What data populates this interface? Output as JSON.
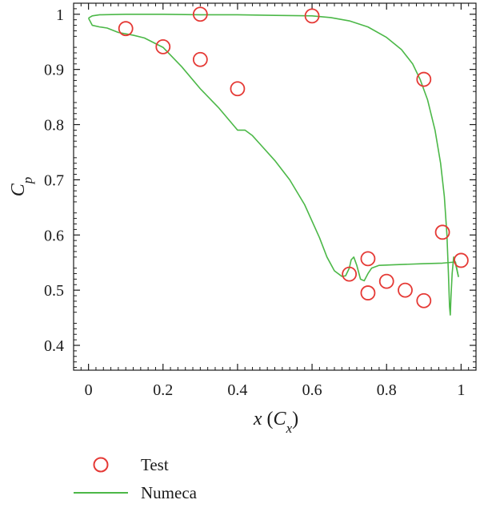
{
  "chart_data": {
    "type": "scatter",
    "xlabel_main": "x",
    "xlabel_paren_open": " (",
    "xlabel_sub_base": "C",
    "xlabel_sub": "x",
    "xlabel_paren_close": ")",
    "ylabel_base": "C",
    "ylabel_sub": "p",
    "xlim": [
      -0.04,
      1.04
    ],
    "ylim": [
      0.355,
      1.02
    ],
    "x_ticks": [
      0,
      0.2,
      0.4,
      0.6,
      0.8,
      1
    ],
    "x_tick_labels": [
      "0",
      "0.2",
      "0.4",
      "0.6",
      "0.8",
      "1"
    ],
    "y_ticks": [
      0.4,
      0.5,
      0.6,
      0.7,
      0.8,
      0.9,
      1
    ],
    "y_tick_labels": [
      "0.4",
      "0.5",
      "0.6",
      "0.7",
      "0.8",
      "0.9",
      "1"
    ],
    "grid": false,
    "legend_position": "bottom-left, below plot",
    "series": [
      {
        "name": "Test",
        "kind": "marker",
        "marker": "open-circle",
        "color": "#e53935",
        "points": [
          [
            0.1,
            0.974
          ],
          [
            0.2,
            0.941
          ],
          [
            0.3,
            0.918
          ],
          [
            0.4,
            0.865
          ],
          [
            0.3,
            1.0
          ],
          [
            0.6,
            0.997
          ],
          [
            0.7,
            0.529
          ],
          [
            0.75,
            0.557
          ],
          [
            0.75,
            0.495
          ],
          [
            0.8,
            0.516
          ],
          [
            0.85,
            0.5
          ],
          [
            0.9,
            0.882
          ],
          [
            0.9,
            0.481
          ],
          [
            0.95,
            0.605
          ],
          [
            1.0,
            0.554
          ]
        ]
      },
      {
        "name": "Numeca",
        "kind": "line",
        "color": "#4cb848",
        "segments": [
          [
            [
              0.0,
              0.993
            ],
            [
              0.01,
              0.997
            ],
            [
              0.03,
              0.999
            ],
            [
              0.1,
              1.0
            ],
            [
              0.2,
              1.0
            ],
            [
              0.3,
              0.999
            ],
            [
              0.4,
              0.999
            ],
            [
              0.5,
              0.998
            ],
            [
              0.6,
              0.997
            ],
            [
              0.65,
              0.994
            ],
            [
              0.7,
              0.988
            ],
            [
              0.75,
              0.977
            ],
            [
              0.8,
              0.958
            ],
            [
              0.84,
              0.936
            ],
            [
              0.87,
              0.91
            ],
            [
              0.89,
              0.882
            ],
            [
              0.91,
              0.845
            ],
            [
              0.93,
              0.79
            ],
            [
              0.945,
              0.73
            ],
            [
              0.955,
              0.67
            ],
            [
              0.962,
              0.6
            ],
            [
              0.966,
              0.53
            ],
            [
              0.969,
              0.47
            ],
            [
              0.971,
              0.455
            ],
            [
              0.973,
              0.49
            ],
            [
              0.976,
              0.53
            ],
            [
              0.98,
              0.56
            ],
            [
              0.986,
              0.545
            ],
            [
              0.993,
              0.524
            ]
          ],
          [
            [
              0.0,
              0.993
            ],
            [
              0.01,
              0.98
            ],
            [
              0.03,
              0.977
            ],
            [
              0.05,
              0.975
            ],
            [
              0.08,
              0.967
            ],
            [
              0.12,
              0.962
            ],
            [
              0.15,
              0.957
            ],
            [
              0.2,
              0.94
            ],
            [
              0.25,
              0.905
            ],
            [
              0.3,
              0.865
            ],
            [
              0.35,
              0.83
            ],
            [
              0.4,
              0.79
            ],
            [
              0.42,
              0.79
            ],
            [
              0.44,
              0.78
            ],
            [
              0.46,
              0.765
            ],
            [
              0.5,
              0.735
            ],
            [
              0.54,
              0.7
            ],
            [
              0.58,
              0.655
            ],
            [
              0.62,
              0.595
            ],
            [
              0.64,
              0.56
            ],
            [
              0.66,
              0.535
            ],
            [
              0.68,
              0.525
            ],
            [
              0.69,
              0.526
            ],
            [
              0.7,
              0.54
            ],
            [
              0.705,
              0.555
            ],
            [
              0.712,
              0.56
            ],
            [
              0.72,
              0.545
            ],
            [
              0.73,
              0.52
            ],
            [
              0.74,
              0.517
            ],
            [
              0.75,
              0.53
            ],
            [
              0.76,
              0.54
            ],
            [
              0.78,
              0.545
            ],
            [
              0.82,
              0.546
            ],
            [
              0.9,
              0.548
            ],
            [
              0.95,
              0.549
            ],
            [
              0.985,
              0.551
            ],
            [
              0.993,
              0.524
            ]
          ]
        ]
      }
    ],
    "legend": [
      {
        "label": "Test",
        "symbol": "circle"
      },
      {
        "label": "Numeca",
        "symbol": "line"
      }
    ]
  }
}
